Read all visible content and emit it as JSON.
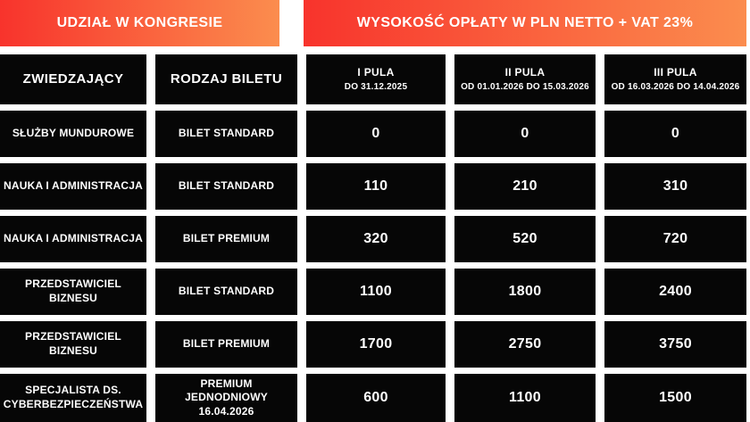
{
  "colors": {
    "gradient_start": "#f8332c",
    "gradient_end": "#fb8d4e",
    "cell_background": "#060606",
    "text": "#ffffff",
    "page_background": "#ffffff"
  },
  "banner": {
    "left": "UDZIAŁ W KONGRESIE",
    "right": "WYSOKOŚĆ OPŁATY W PLN NETTO + VAT 23%"
  },
  "table": {
    "columns": [
      {
        "title": "ZWIEDZAJĄCY",
        "subtitle": ""
      },
      {
        "title": "RODZAJ BILETU",
        "subtitle": ""
      },
      {
        "title": "I PULA",
        "subtitle": "DO 31.12.2025"
      },
      {
        "title": "II PULA",
        "subtitle": "OD 01.01.2026 DO 15.03.2026"
      },
      {
        "title": "III PULA",
        "subtitle": "OD 16.03.2026 DO 14.04.2026"
      }
    ],
    "rows": [
      {
        "visitor": "SŁUŻBY MUNDUROWE",
        "ticket": "BILET STANDARD",
        "pool1": "0",
        "pool2": "0",
        "pool3": "0"
      },
      {
        "visitor": "NAUKA I ADMINISTRACJA",
        "ticket": "BILET STANDARD",
        "pool1": "110",
        "pool2": "210",
        "pool3": "310"
      },
      {
        "visitor": "NAUKA I ADMINISTRACJA",
        "ticket": "BILET PREMIUM",
        "pool1": "320",
        "pool2": "520",
        "pool3": "720"
      },
      {
        "visitor": "PRZEDSTAWICIEL BIZNESU",
        "ticket": "BILET STANDARD",
        "pool1": "1100",
        "pool2": "1800",
        "pool3": "2400"
      },
      {
        "visitor": "PRZEDSTAWICIEL BIZNESU",
        "ticket": "BILET PREMIUM",
        "pool1": "1700",
        "pool2": "2750",
        "pool3": "3750"
      },
      {
        "visitor": "SPECJALISTA DS. CYBERBEZPIECZEŃSTWA",
        "ticket": "PREMIUM JEDNODNIOWY 16.04.2026",
        "pool1": "600",
        "pool2": "1100",
        "pool3": "1500"
      }
    ]
  },
  "chart_data": {
    "type": "table",
    "title": "UDZIAŁ W KONGRESIE — WYSOKOŚĆ OPŁATY W PLN NETTO + VAT 23%",
    "columns": [
      "ZWIEDZAJĄCY",
      "RODZAJ BILETU",
      "I PULA DO 31.12.2025",
      "II PULA OD 01.01.2026 DO 15.03.2026",
      "III PULA OD 16.03.2026 DO 14.04.2026"
    ],
    "rows": [
      [
        "SŁUŻBY MUNDUROWE",
        "BILET STANDARD",
        0,
        0,
        0
      ],
      [
        "NAUKA I ADMINISTRACJA",
        "BILET STANDARD",
        110,
        210,
        310
      ],
      [
        "NAUKA I ADMINISTRACJA",
        "BILET PREMIUM",
        320,
        520,
        720
      ],
      [
        "PRZEDSTAWICIEL BIZNESU",
        "BILET STANDARD",
        1100,
        1800,
        2400
      ],
      [
        "PRZEDSTAWICIEL BIZNESU",
        "BILET PREMIUM",
        1700,
        2750,
        3750
      ],
      [
        "SPECJALISTA DS. CYBERBEZPIECZEŃSTWA",
        "PREMIUM JEDNODNIOWY 16.04.2026",
        600,
        1100,
        1500
      ]
    ],
    "units": "PLN netto + VAT 23%",
    "legend_position": "none",
    "grid": false
  }
}
